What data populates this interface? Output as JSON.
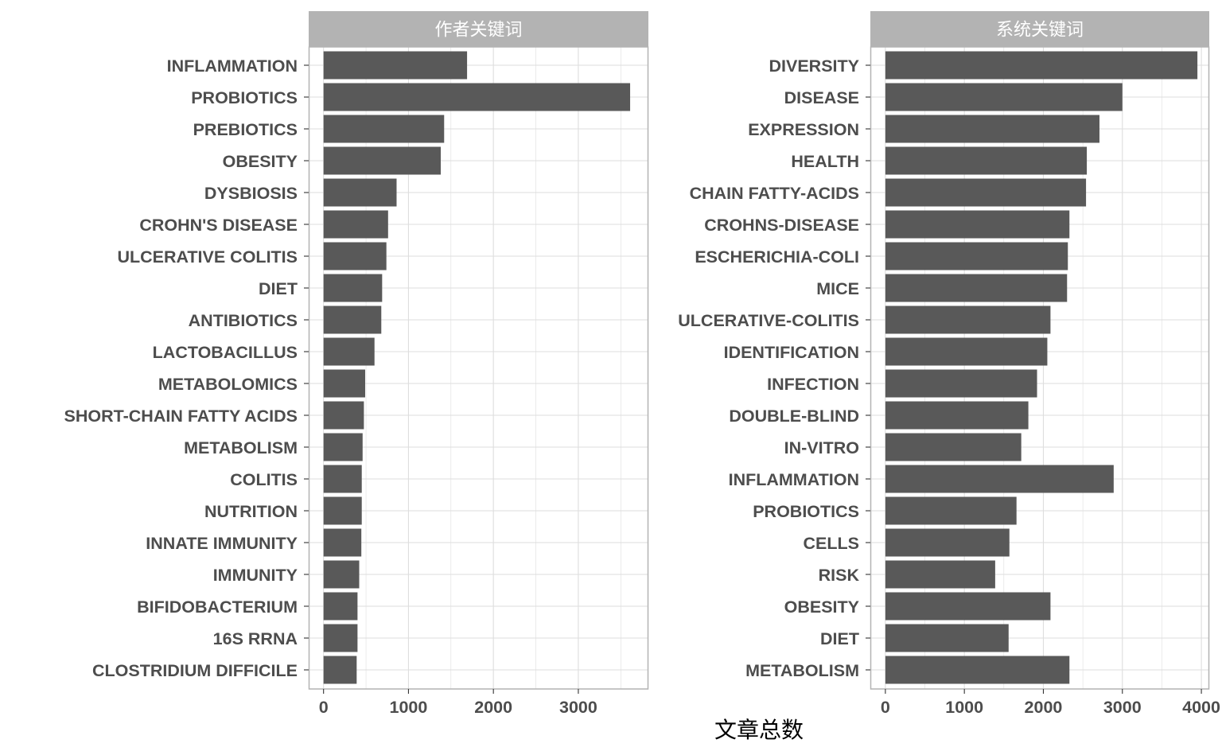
{
  "chart_data": {
    "type": "bar",
    "orientation": "horizontal",
    "xlabel": "文章总数",
    "ylabel": "",
    "grid": true,
    "colors": {
      "bar": "#595959",
      "strip": "#b3b3b3",
      "grid": "#dedede",
      "panel_border": "#b3b3b3",
      "text": "#4d4d4d"
    },
    "panels": [
      {
        "title": "作者关键词",
        "xlim": [
          -175,
          3825
        ],
        "ticks": [
          0,
          1000,
          2000,
          3000
        ],
        "categories": [
          "INFLAMMATION",
          "PROBIOTICS",
          "PREBIOTICS",
          "OBESITY",
          "DYSBIOSIS",
          "CROHN'S DISEASE",
          "ULCERATIVE COLITIS",
          "DIET",
          "ANTIBIOTICS",
          "LACTOBACILLUS",
          "METABOLOMICS",
          "SHORT-CHAIN FATTY ACIDS",
          "METABOLISM",
          "COLITIS",
          "NUTRITION",
          "INNATE IMMUNITY",
          "IMMUNITY",
          "BIFIDOBACTERIUM",
          "16S RRNA",
          "CLOSTRIDIUM DIFFICILE"
        ],
        "values": [
          1690,
          3610,
          1420,
          1380,
          860,
          760,
          740,
          690,
          680,
          600,
          490,
          475,
          460,
          450,
          450,
          445,
          420,
          400,
          400,
          390
        ]
      },
      {
        "title": "系统关键词",
        "xlim": [
          -190,
          4100
        ],
        "ticks": [
          0,
          1000,
          2000,
          3000,
          4000
        ],
        "categories": [
          "DIVERSITY",
          "DISEASE",
          "EXPRESSION",
          "HEALTH",
          "CHAIN FATTY-ACIDS",
          "CROHNS-DISEASE",
          "ESCHERICHIA-COLI",
          "MICE",
          "ULCERATIVE-COLITIS",
          "IDENTIFICATION",
          "INFECTION",
          "DOUBLE-BLIND",
          "IN-VITRO",
          "INFLAMMATION",
          "PROBIOTICS",
          "CELLS",
          "RISK",
          "OBESITY",
          "DIET",
          "METABOLISM"
        ],
        "values": [
          3950,
          3000,
          2710,
          2550,
          2540,
          2330,
          2310,
          2300,
          2090,
          2050,
          1920,
          1810,
          1720,
          2890,
          1660,
          1570,
          1390,
          2090,
          1560,
          2330
        ]
      }
    ]
  }
}
